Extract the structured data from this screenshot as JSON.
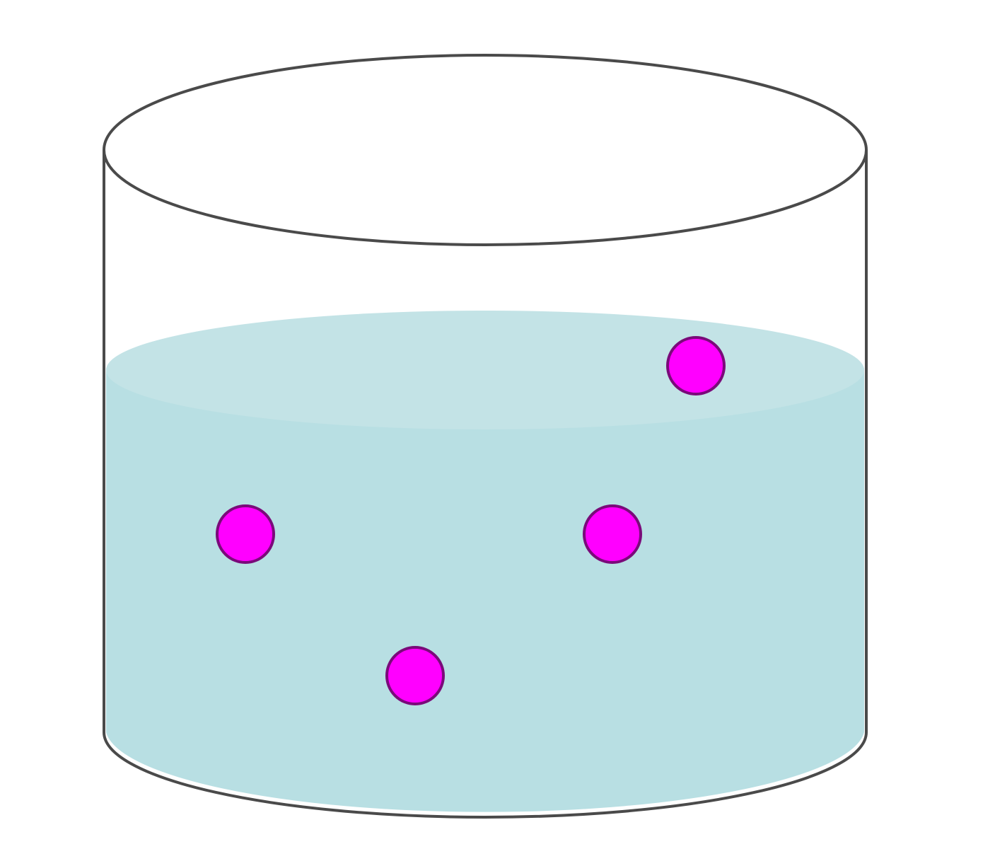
{
  "colors": {
    "background": "#ffffff",
    "outline": "#4a4a4a",
    "liquid_surface": "#c3e3e6",
    "liquid_body": "#b8dfe3",
    "particle_fill": "#ff00ff",
    "particle_stroke": "#7a0a7a"
  },
  "diagram": {
    "subject": "beaker",
    "content": "liquid",
    "particle_count": 4
  }
}
